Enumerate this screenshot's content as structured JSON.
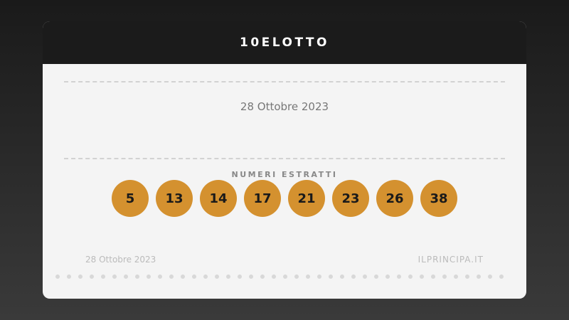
{
  "header": {
    "title": "10ELOTTO"
  },
  "draw": {
    "date": "28 Ottobre 2023",
    "numbers_label": "NUMERI ESTRATTI",
    "numbers": [
      "5",
      "13",
      "14",
      "17",
      "21",
      "23",
      "26",
      "38"
    ]
  },
  "footer": {
    "date": "28 Ottobre 2023",
    "site": "ILPRINCIPA.IT"
  },
  "colors": {
    "ball": "#d4912f",
    "header": "#1b1b1b",
    "card": "#f4f4f4"
  }
}
